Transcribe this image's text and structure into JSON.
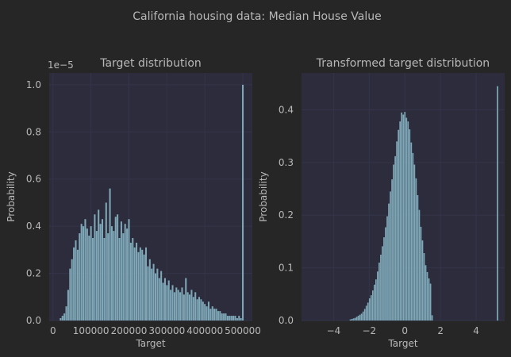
{
  "figure": {
    "suptitle": "California housing data: Median House Value",
    "colors": {
      "background": "#262626",
      "axes_bg": "#2c2c3c",
      "grid": "#34344a",
      "bar": "#7fa9b8",
      "text": "#b8b8b8"
    }
  },
  "chart_data": [
    {
      "type": "bar",
      "title": "Target distribution",
      "xlabel": "Target",
      "ylabel": "Probability",
      "offset_text": "1e−5",
      "xlim": [
        -10000,
        525000
      ],
      "ylim": [
        0,
        1.05
      ],
      "x_ticks": [
        0,
        100000,
        200000,
        300000,
        400000,
        500000
      ],
      "x_tick_labels": [
        "0",
        "100000",
        "200000",
        "300000",
        "400000",
        "500000"
      ],
      "y_ticks": [
        0,
        0.2,
        0.4,
        0.6,
        0.8,
        1.0
      ],
      "y_tick_labels": [
        "0.0",
        "0.2",
        "0.4",
        "0.6",
        "0.8",
        "1.0"
      ],
      "grid": true,
      "bin_width": 5000,
      "bins_x": [
        15000,
        20000,
        25000,
        30000,
        35000,
        40000,
        45000,
        50000,
        55000,
        60000,
        65000,
        70000,
        75000,
        80000,
        85000,
        90000,
        95000,
        100000,
        105000,
        110000,
        115000,
        120000,
        125000,
        130000,
        135000,
        140000,
        145000,
        150000,
        155000,
        160000,
        165000,
        170000,
        175000,
        180000,
        185000,
        190000,
        195000,
        200000,
        205000,
        210000,
        215000,
        220000,
        225000,
        230000,
        235000,
        240000,
        245000,
        250000,
        255000,
        260000,
        265000,
        270000,
        275000,
        280000,
        285000,
        290000,
        295000,
        300000,
        305000,
        310000,
        315000,
        320000,
        325000,
        330000,
        335000,
        340000,
        345000,
        350000,
        355000,
        360000,
        365000,
        370000,
        375000,
        380000,
        385000,
        390000,
        395000,
        400000,
        405000,
        410000,
        415000,
        420000,
        425000,
        430000,
        435000,
        440000,
        445000,
        450000,
        455000,
        460000,
        465000,
        470000,
        475000,
        480000,
        485000,
        490000,
        495000,
        500000
      ],
      "values": [
        0.0,
        0.01,
        0.02,
        0.03,
        0.06,
        0.13,
        0.22,
        0.26,
        0.31,
        0.34,
        0.3,
        0.37,
        0.41,
        0.4,
        0.43,
        0.39,
        0.36,
        0.4,
        0.35,
        0.45,
        0.38,
        0.47,
        0.41,
        0.43,
        0.35,
        0.5,
        0.37,
        0.56,
        0.4,
        0.38,
        0.44,
        0.45,
        0.35,
        0.42,
        0.37,
        0.41,
        0.39,
        0.43,
        0.33,
        0.35,
        0.31,
        0.33,
        0.29,
        0.31,
        0.3,
        0.28,
        0.31,
        0.23,
        0.26,
        0.22,
        0.24,
        0.2,
        0.22,
        0.18,
        0.21,
        0.16,
        0.18,
        0.15,
        0.17,
        0.13,
        0.15,
        0.12,
        0.14,
        0.13,
        0.12,
        0.14,
        0.11,
        0.18,
        0.12,
        0.11,
        0.13,
        0.1,
        0.12,
        0.09,
        0.1,
        0.09,
        0.08,
        0.07,
        0.06,
        0.08,
        0.05,
        0.06,
        0.05,
        0.05,
        0.04,
        0.04,
        0.03,
        0.03,
        0.03,
        0.02,
        0.02,
        0.02,
        0.02,
        0.02,
        0.01,
        0.02,
        0.01,
        1.0
      ]
    },
    {
      "type": "bar",
      "title": "Transformed target distribution",
      "xlabel": "Target",
      "ylabel": "Probability",
      "xlim": [
        -5.8,
        5.6
      ],
      "ylim": [
        0,
        0.47
      ],
      "x_ticks": [
        -4,
        -2,
        0,
        2,
        4
      ],
      "x_tick_labels": [
        "−4",
        "−2",
        "0",
        "2",
        "4"
      ],
      "y_ticks": [
        0,
        0.1,
        0.2,
        0.3,
        0.4
      ],
      "y_tick_labels": [
        "0.0",
        "0.1",
        "0.2",
        "0.3",
        "0.4"
      ],
      "grid": true,
      "bin_width": 0.09,
      "bins_x": [
        -3.15,
        -3.06,
        -2.97,
        -2.88,
        -2.79,
        -2.7,
        -2.61,
        -2.52,
        -2.43,
        -2.34,
        -2.25,
        -2.16,
        -2.07,
        -1.98,
        -1.89,
        -1.8,
        -1.71,
        -1.62,
        -1.53,
        -1.44,
        -1.35,
        -1.26,
        -1.17,
        -1.08,
        -0.99,
        -0.9,
        -0.81,
        -0.72,
        -0.63,
        -0.54,
        -0.45,
        -0.36,
        -0.27,
        -0.18,
        -0.09,
        0.0,
        0.09,
        0.18,
        0.27,
        0.36,
        0.45,
        0.54,
        0.63,
        0.72,
        0.81,
        0.9,
        0.99,
        1.08,
        1.17,
        1.26,
        1.35,
        1.44,
        1.53,
        5.2
      ],
      "values": [
        0.0,
        0.002,
        0.003,
        0.004,
        0.005,
        0.007,
        0.009,
        0.011,
        0.013,
        0.017,
        0.022,
        0.028,
        0.034,
        0.042,
        0.048,
        0.057,
        0.068,
        0.078,
        0.093,
        0.11,
        0.125,
        0.141,
        0.158,
        0.177,
        0.198,
        0.222,
        0.245,
        0.268,
        0.296,
        0.312,
        0.34,
        0.362,
        0.378,
        0.395,
        0.391,
        0.396,
        0.385,
        0.378,
        0.363,
        0.338,
        0.318,
        0.296,
        0.27,
        0.238,
        0.21,
        0.178,
        0.152,
        0.128,
        0.105,
        0.092,
        0.08,
        0.07,
        0.01,
        0.445
      ]
    }
  ]
}
